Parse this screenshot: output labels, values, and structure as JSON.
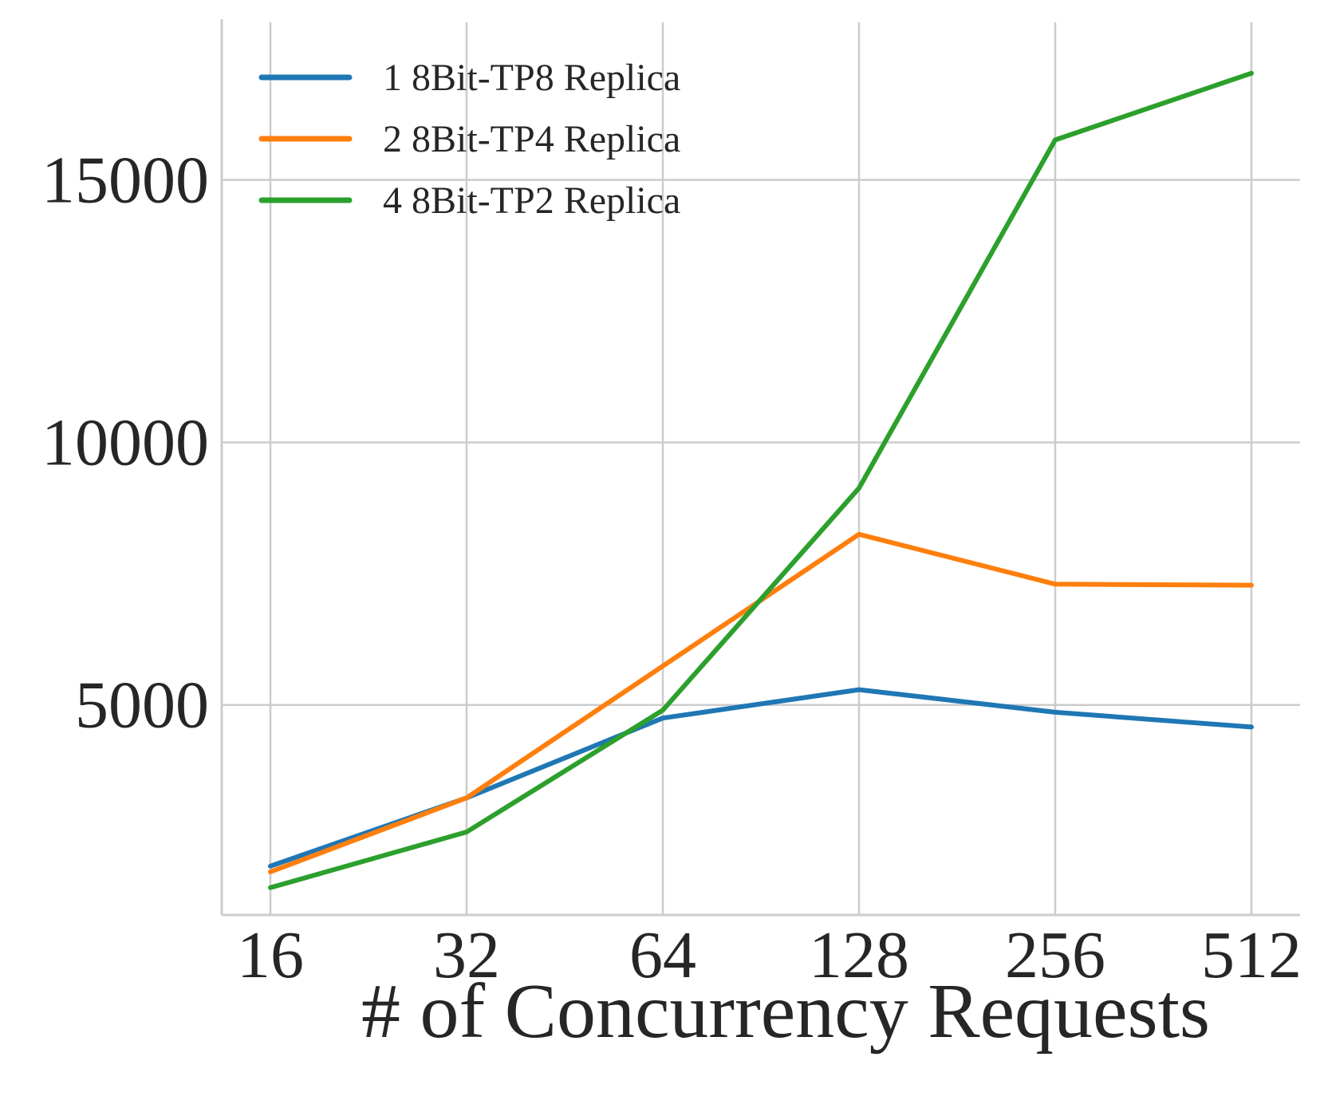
{
  "chart_data": {
    "type": "line",
    "title": "",
    "xlabel": "# of Concurrency Requests",
    "ylabel": "",
    "categories": [
      "16",
      "32",
      "64",
      "128",
      "256",
      "512"
    ],
    "x_scale": "log2",
    "y_ticks": [
      5000,
      10000,
      15000
    ],
    "ylim": [
      1000,
      18000
    ],
    "grid": true,
    "legend_position": "top-left",
    "colors": {
      "grid": "#cccccc",
      "axis": "#cccccc",
      "text": "#262626"
    },
    "series": [
      {
        "name": "1 8Bit-TP8 Replica",
        "color": "#1f77b4",
        "values": [
          1930,
          3230,
          4750,
          5290,
          4860,
          4580
        ]
      },
      {
        "name": "2 8Bit-TP4 Replica",
        "color": "#ff7f0e",
        "values": [
          1820,
          3230,
          5740,
          8250,
          7300,
          7280
        ]
      },
      {
        "name": "4 8Bit-TP2 Replica",
        "color": "#2ca02c",
        "values": [
          1520,
          2580,
          4900,
          9130,
          15760,
          17030
        ]
      }
    ]
  }
}
